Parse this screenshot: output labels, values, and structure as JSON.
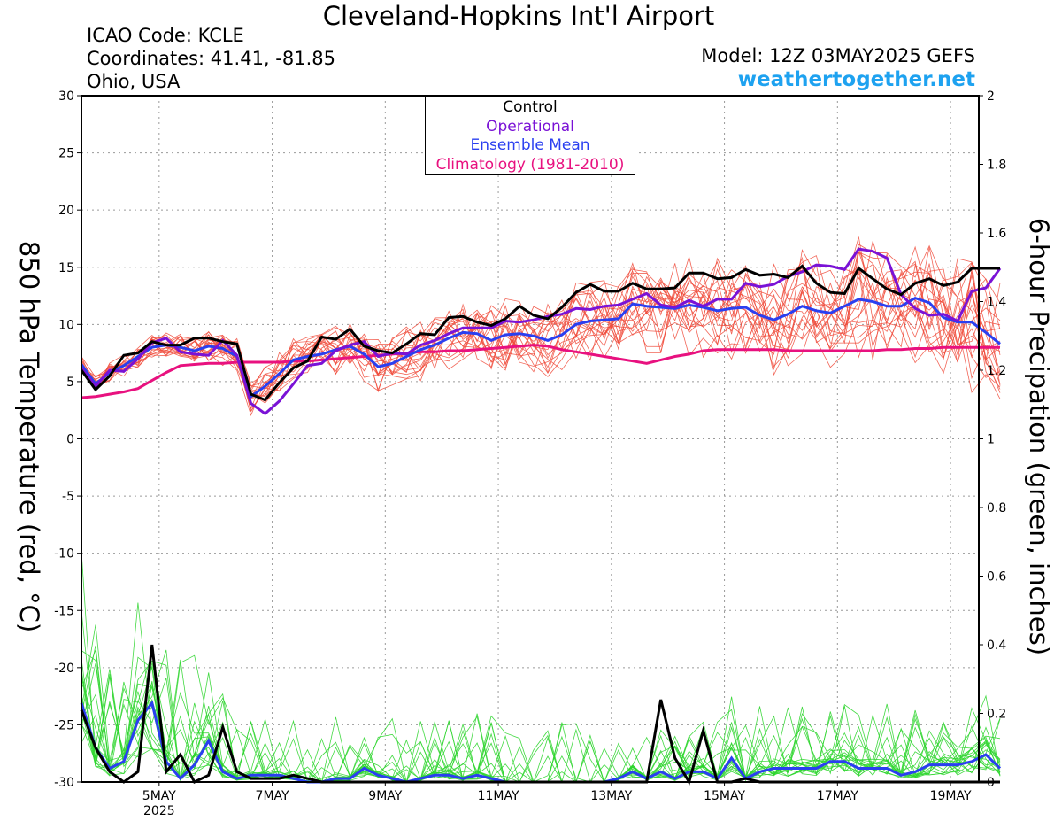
{
  "header": {
    "title": "Cleveland-Hopkins Int'l Airport",
    "icao": "ICAO Code: KCLE",
    "coords": "Coordinates: 41.41, -81.85",
    "region": "Ohio, USA",
    "model": "Model: 12Z 03MAY2025 GEFS",
    "site": "weathertogether.net"
  },
  "legend": {
    "control": "Control",
    "operational": "Operational",
    "mean": "Ensemble Mean",
    "climatology": "Climatology (1981-2010)"
  },
  "colors": {
    "control": "#000000",
    "operational": "#7a12d6",
    "mean": "#2a3ff0",
    "climatology": "#e8117f",
    "members_temp": "#f04a3a",
    "members_precip": "#2ed52e",
    "site": "#1ea2f0"
  },
  "chart_data": {
    "type": "line",
    "y_left_label": "850 hPa Temperature (red, °C)",
    "y_right_label": "6-hour Precipation (green, inches)",
    "y_left_range": [
      -30,
      30
    ],
    "y_left_ticks": [
      "30",
      "25",
      "20",
      "15",
      "10",
      "5",
      "0",
      "-5",
      "-10",
      "-15",
      "-20",
      "-25",
      "-30"
    ],
    "y_right_range": [
      0,
      2
    ],
    "y_right_ticks": [
      "2",
      "1.8",
      "1.6",
      "1.4",
      "1.2",
      "1",
      "0.8",
      "0.6",
      "0.4",
      "0.2",
      "0"
    ],
    "x_range": [
      3.625,
      19.5
    ],
    "x_ticks": [
      {
        "x": 5,
        "label": "5MAY",
        "sub": "2025"
      },
      {
        "x": 7,
        "label": "7MAY",
        "sub": ""
      },
      {
        "x": 9,
        "label": "9MAY",
        "sub": ""
      },
      {
        "x": 11,
        "label": "11MAY",
        "sub": ""
      },
      {
        "x": 13,
        "label": "13MAY",
        "sub": ""
      },
      {
        "x": 15,
        "label": "15MAY",
        "sub": ""
      },
      {
        "x": 17,
        "label": "17MAY",
        "sub": ""
      },
      {
        "x": 19,
        "label": "19MAY",
        "sub": ""
      }
    ],
    "grid": true,
    "legend_position": "top-center",
    "temperature": {
      "control": {
        "x0": 3.625,
        "dx": 0.25,
        "values": [
          6,
          4.3,
          5.5,
          7.3,
          7.5,
          8.5,
          8.2,
          8.2,
          8.8,
          8.8,
          8.5,
          8.3,
          3.9,
          3.4,
          4.9,
          6.2,
          6.8,
          8.9,
          8.7,
          9.6,
          8.1,
          7.7,
          7.5,
          8.3,
          9.2,
          9.1,
          10.6,
          10.7,
          10.2,
          9.9,
          10.5,
          11.6,
          10.8,
          10.5,
          11.5,
          12.8,
          13.5,
          12.9,
          12.9,
          13.6,
          13.1,
          13.1,
          13.2,
          14.5,
          14.5,
          14,
          14.1,
          14.8,
          14.3,
          14.4,
          14.1,
          15.1,
          13.6,
          12.8,
          12.7,
          14.9,
          14,
          13.1,
          12.6,
          13.6,
          14,
          13.4,
          13.7,
          14.9,
          14.9,
          14.9
        ]
      },
      "operational": {
        "x0": 3.625,
        "dx": 0.25,
        "values": [
          6.2,
          4.6,
          6,
          5.9,
          7,
          8.4,
          8.8,
          7.6,
          7.4,
          7.3,
          8.6,
          7.3,
          3.1,
          2.2,
          3.3,
          4.8,
          6.4,
          6.6,
          7.7,
          8.2,
          8.5,
          7.2,
          7.5,
          7.4,
          8.2,
          8.6,
          9.2,
          9.7,
          9.7,
          9.7,
          10.3,
          10.2,
          10.4,
          10.7,
          10.9,
          11.4,
          11.3,
          11.6,
          11.7,
          12.2,
          12.7,
          11.7,
          11.5,
          12.1,
          11.6,
          12.2,
          12.2,
          13.6,
          13.3,
          13.5,
          14.2,
          14.6,
          15.2,
          15.1,
          14.8,
          16.6,
          16.4,
          15.8,
          12.6,
          11.4,
          10.8,
          10.9,
          10.3,
          12.9,
          13.2,
          14.9
        ]
      },
      "mean": {
        "x0": 3.625,
        "dx": 0.25,
        "values": [
          6.5,
          4.8,
          5.8,
          6.4,
          7.2,
          8,
          8.2,
          8,
          7.7,
          8.1,
          7.9,
          7.2,
          3.7,
          4.6,
          5.7,
          6.9,
          7.2,
          7.4,
          7.8,
          8.1,
          7.4,
          6.3,
          6.6,
          7.2,
          7.8,
          8.2,
          8.8,
          9.3,
          9.2,
          8.6,
          9.1,
          9.2,
          9,
          8.6,
          9.1,
          10,
          10.3,
          10.4,
          10.5,
          11.8,
          11.6,
          11.5,
          11.4,
          11.7,
          11.5,
          11.2,
          11.4,
          11.5,
          10.8,
          10.4,
          10.9,
          11.6,
          11.2,
          11,
          11.6,
          12.2,
          12,
          11.6,
          11.6,
          12.3,
          11.9,
          10.6,
          10.2,
          10.2,
          9.3,
          8.3
        ]
      },
      "climatology": {
        "x0": 3.625,
        "dx": 0.25,
        "values": [
          3.6,
          3.7,
          3.9,
          4.1,
          4.4,
          5.1,
          5.8,
          6.4,
          6.5,
          6.6,
          6.6,
          6.7,
          6.7,
          6.7,
          6.7,
          6.8,
          6.8,
          6.9,
          7,
          7.1,
          7.2,
          7.3,
          7.4,
          7.5,
          7.6,
          7.6,
          7.7,
          7.7,
          7.8,
          7.9,
          8,
          8.1,
          8.2,
          8.1,
          7.8,
          7.6,
          7.4,
          7.2,
          7,
          6.8,
          6.6,
          6.9,
          7.2,
          7.4,
          7.7,
          7.8,
          7.8,
          7.8,
          7.8,
          7.8,
          7.7,
          7.7,
          7.7,
          7.7,
          7.7,
          7.7,
          7.7,
          7.8,
          7.8,
          7.9,
          7.9,
          8,
          8,
          8,
          8,
          8
        ]
      }
    },
    "precipitation": {
      "control": {
        "x0": 3.625,
        "dx": 0.25,
        "values": [
          0.21,
          0.1,
          0.03,
          0,
          0.03,
          0.4,
          0.03,
          0.08,
          0,
          0.02,
          0.16,
          0.03,
          0.01,
          0.01,
          0.01,
          0.02,
          0.01,
          0,
          0,
          0,
          0,
          0,
          0,
          0,
          0,
          0,
          0,
          0,
          0,
          0,
          0,
          0,
          0,
          0,
          0,
          0,
          0,
          0,
          0,
          0,
          0,
          0.24,
          0.07,
          0,
          0.15,
          0,
          0,
          0.01,
          0,
          0,
          0,
          0,
          0,
          0,
          0,
          0,
          0,
          0,
          0,
          0,
          0,
          0,
          0,
          0,
          0,
          0
        ]
      },
      "mean": {
        "x0": 3.625,
        "dx": 0.25,
        "values": [
          0.23,
          0.1,
          0.04,
          0.06,
          0.18,
          0.23,
          0.06,
          0.01,
          0.05,
          0.12,
          0.03,
          0.01,
          0.02,
          0.02,
          0.02,
          0.01,
          0,
          0,
          0.01,
          0.01,
          0.04,
          0.02,
          0.01,
          0,
          0.01,
          0.02,
          0.02,
          0.01,
          0.02,
          0.01,
          0,
          0,
          0,
          0,
          0,
          0,
          0,
          0,
          0.01,
          0.03,
          0.01,
          0.03,
          0.01,
          0.03,
          0.03,
          0.01,
          0.07,
          0.01,
          0.03,
          0.04,
          0.04,
          0.04,
          0.04,
          0.06,
          0.06,
          0.04,
          0.04,
          0.04,
          0.02,
          0.03,
          0.05,
          0.05,
          0.05,
          0.06,
          0.08,
          0.04
        ]
      }
    },
    "ensemble_note": "20 perturbation members drawn as thin lines"
  }
}
